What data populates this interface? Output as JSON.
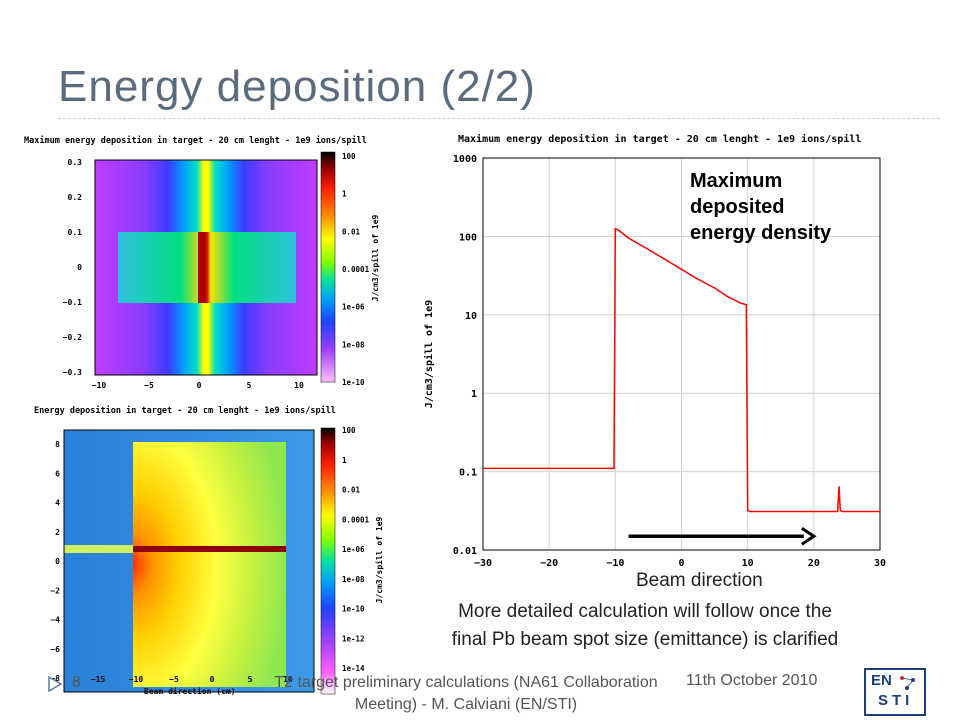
{
  "slide": {
    "title": "Energy deposition (2/2)",
    "page_number": "8",
    "footer_center": "T2 target preliminary calculations (NA61 Collaboration Meeting) - M. Calviani (EN/STI)",
    "footer_date": "11th October 2010",
    "logo_line1": "EN",
    "logo_line2": "STI"
  },
  "annotations": {
    "max_label_line1": "Maximum",
    "max_label_line2": "deposited",
    "max_label_line3": "energy density",
    "beam_direction": "Beam direction",
    "note_line1": "More detailed calculation will follow once the",
    "note_line2": "final Pb beam spot size (emittance) is clarified"
  },
  "heatmap_top": {
    "title": "Maximum energy deposition in target - 20 cm lenght - 1e9 ions/spill",
    "x_ticks": [
      "−10",
      "−5",
      "0",
      "5",
      "10"
    ],
    "y_ticks": [
      "0.3",
      "0.2",
      "0.1",
      "0",
      "−0.1",
      "−0.2",
      "−0.3"
    ],
    "colorbar_ticks": [
      "100",
      "1",
      "0.01",
      "0.0001",
      "1e-06",
      "1e-08",
      "1e-10"
    ],
    "colorbar_label": "J/cm3/spill of 1e9"
  },
  "heatmap_bottom": {
    "title": "Energy deposition in target - 20 cm lenght - 1e9 ions/spill",
    "x_ticks": [
      "−15",
      "−10",
      "−5",
      "0",
      "5",
      "10"
    ],
    "y_ticks": [
      "8",
      "6",
      "4",
      "2",
      "0",
      "−2",
      "−4",
      "−6",
      "−8"
    ],
    "colorbar_ticks": [
      "100",
      "1",
      "0.01",
      "0.0001",
      "1e-06",
      "1e-08",
      "1e-10",
      "1e-12",
      "1e-14"
    ],
    "colorbar_label": "J/cm3/spill of 1e9",
    "xlabel": "Beam direction (cm)"
  },
  "chart_data": {
    "type": "line",
    "title": "Maximum energy deposition in target - 20 cm lenght - 1e9 ions/spill",
    "xlabel": "",
    "ylabel": "J/cm3/spill of 1e9",
    "yscale": "log",
    "xlim": [
      -30,
      30
    ],
    "ylim": [
      0.01,
      1000
    ],
    "x_ticks": [
      -30,
      -20,
      -10,
      0,
      10,
      20,
      30
    ],
    "y_ticks": [
      0.01,
      0.1,
      1,
      10,
      100,
      1000
    ],
    "y_tick_labels": [
      "0.01",
      "0.1",
      "1",
      "10",
      "100",
      "1000"
    ],
    "grid": true,
    "series_color": "#ff0000",
    "series": [
      {
        "x": [
          -30,
          -25,
          -20,
          -15,
          -10.2,
          -10,
          -9.5,
          -8,
          -5,
          -2,
          0,
          2,
          5,
          7,
          9,
          9.8,
          10,
          10.3,
          13,
          17,
          20,
          22,
          23.6,
          23.8,
          24,
          24.3,
          27,
          30
        ],
        "y": [
          0.11,
          0.11,
          0.11,
          0.11,
          0.11,
          125,
          120,
          95,
          68,
          48,
          38,
          30,
          22,
          17,
          14,
          13.5,
          0.032,
          0.031,
          0.031,
          0.031,
          0.031,
          0.031,
          0.031,
          0.065,
          0.032,
          0.031,
          0.031,
          0.031
        ]
      }
    ],
    "arrow": {
      "from_x": -8,
      "to_x": 20,
      "y": 0.015
    }
  }
}
